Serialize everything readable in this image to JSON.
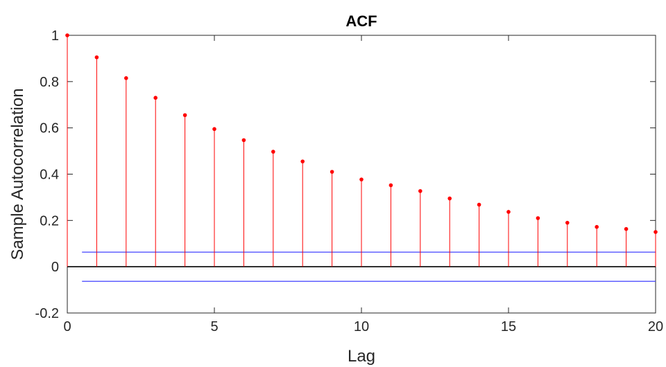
{
  "chart_data": {
    "type": "stem",
    "title": "ACF",
    "xlabel": "Lag",
    "ylabel": "Sample Autocorrelation",
    "xlim": [
      0,
      20
    ],
    "ylim": [
      -0.2,
      1
    ],
    "xticks": [
      0,
      5,
      10,
      15,
      20
    ],
    "xtick_labels": [
      "0",
      "5",
      "10",
      "15",
      "20"
    ],
    "yticks": [
      -0.2,
      0,
      0.2,
      0.4,
      0.6,
      0.8,
      1
    ],
    "ytick_labels": [
      "-0.2",
      "0",
      "0.2",
      "0.4",
      "0.6",
      "0.8",
      "1"
    ],
    "grid": false,
    "series": [
      {
        "x": [
          0,
          1,
          2,
          3,
          4,
          5,
          6,
          7,
          8,
          9,
          10,
          11,
          12,
          13,
          14,
          15,
          16,
          17,
          18,
          19,
          20
        ],
        "values": [
          1.0,
          0.905,
          0.815,
          0.73,
          0.655,
          0.595,
          0.547,
          0.497,
          0.455,
          0.41,
          0.377,
          0.352,
          0.327,
          0.295,
          0.268,
          0.237,
          0.21,
          0.19,
          0.172,
          0.163,
          0.15
        ],
        "color": "#ff0000"
      }
    ],
    "confidence_bounds": {
      "upper": 0.063,
      "lower": -0.063,
      "x_range": [
        0.5,
        20
      ],
      "color": "#4040ff"
    },
    "zero_line_color": "#000000"
  }
}
